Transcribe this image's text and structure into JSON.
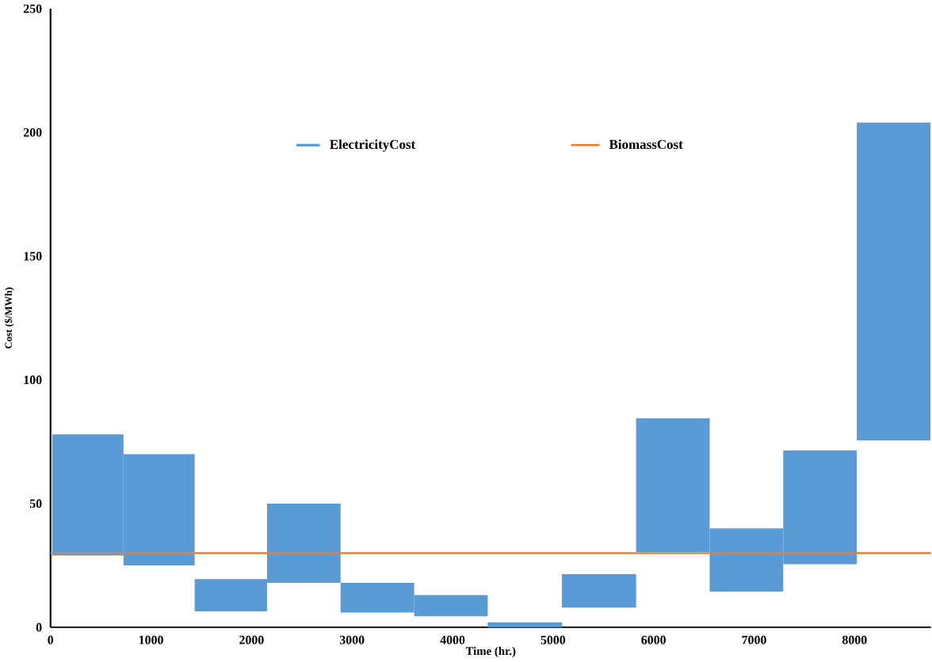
{
  "chart_data": {
    "type": "bar",
    "xlabel": "Time (hr.)",
    "ylabel": "Cost ($/MWh)",
    "xlim": [
      0,
      8760
    ],
    "ylim": [
      0,
      250
    ],
    "xticks": [
      0,
      1000,
      2000,
      3000,
      4000,
      5000,
      6000,
      7000,
      8000
    ],
    "yticks": [
      0,
      50,
      100,
      150,
      200,
      250
    ],
    "legend": "top",
    "grid": false,
    "series": [
      {
        "name": "ElectricityCost",
        "color": "#5b9bd5",
        "x": [
          372,
          1080,
          1788,
          2520,
          3252,
          3984,
          4716,
          5460,
          6192,
          6924,
          7656,
          8388
        ],
        "base": [
          29,
          25,
          6.5,
          18,
          6,
          4.5,
          0,
          8,
          30.5,
          14.5,
          25.5,
          75.5
        ],
        "values": [
          49,
          45,
          13,
          32,
          12,
          8.5,
          2,
          13.5,
          54,
          25.5,
          46,
          128.5
        ]
      },
      {
        "name": "BiomassCost",
        "type": "line",
        "color": "#ed7d31",
        "x": [
          0,
          8760
        ],
        "values": [
          30,
          30
        ]
      }
    ]
  }
}
